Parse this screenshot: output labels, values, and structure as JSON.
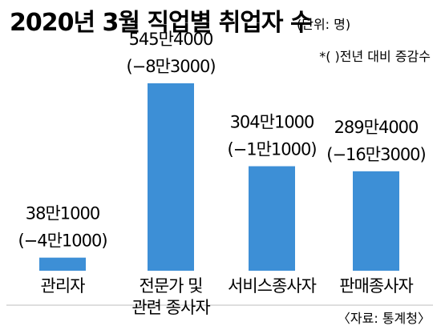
{
  "chart_data": {
    "type": "bar",
    "title": "2020년 3월 직업별 취업자 수",
    "unit": "(단위: 명)",
    "note": "*( )전년 대비 증감수",
    "source": "〈자료: 통계청〉",
    "bar_color": "#3d8fd6",
    "categories": [
      [
        "관리자"
      ],
      [
        "전문가 및",
        "관련 종사자"
      ],
      [
        "서비스종사자"
      ],
      [
        "판매종사자"
      ]
    ],
    "values": [
      381000,
      5454000,
      3041000,
      2894000
    ],
    "value_labels": [
      "38만1000",
      "545만4000",
      "304만1000",
      "289만4000"
    ],
    "change_labels": [
      "(−4만1000)",
      "(−8만3000)",
      "(−1만1000)",
      "(−16만3000)"
    ],
    "changes": [
      -41000,
      -83000,
      -11000,
      -163000
    ],
    "ylim": [
      0,
      5454000
    ],
    "xlabel": "",
    "ylabel": ""
  }
}
